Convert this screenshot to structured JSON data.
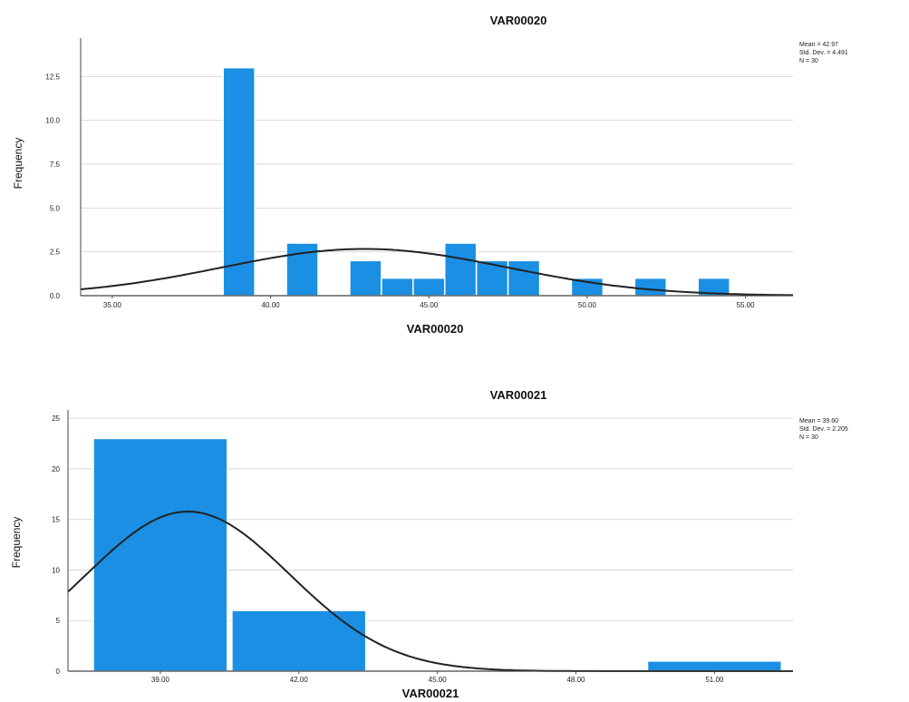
{
  "chart_data": [
    {
      "type": "histogram",
      "title": "VAR00020",
      "xlabel": "VAR00020",
      "ylabel": "Frequency",
      "xlim": [
        34.0,
        56.5
      ],
      "ylim": [
        0,
        15
      ],
      "x_ticks": [
        35,
        40,
        45,
        50,
        55
      ],
      "x_tick_labels": [
        "35.00",
        "40.00",
        "45.00",
        "50.00",
        "55.00"
      ],
      "y_ticks": [
        0,
        2.5,
        5,
        7.5,
        10,
        12.5
      ],
      "y_tick_labels": [
        "0.0",
        "2.5",
        "5.0",
        "7.5",
        "10.0",
        "12.5"
      ],
      "bin_width": 1,
      "bins": [
        {
          "x": 39,
          "count": 13
        },
        {
          "x": 41,
          "count": 3
        },
        {
          "x": 43,
          "count": 2
        },
        {
          "x": 44,
          "count": 1
        },
        {
          "x": 45,
          "count": 1
        },
        {
          "x": 46,
          "count": 3
        },
        {
          "x": 47,
          "count": 2
        },
        {
          "x": 48,
          "count": 2
        },
        {
          "x": 50,
          "count": 1
        },
        {
          "x": 52,
          "count": 1
        },
        {
          "x": 54,
          "count": 1
        }
      ],
      "normal_curve": {
        "mean": 42.97,
        "sd": 4.491,
        "n": 30
      },
      "stats": [
        "Mean = 42.97",
        "Std. Dev. = 4.491",
        "N = 30"
      ],
      "bar_color": "#1a8fe3",
      "curve_color": "#222222",
      "grid": true
    },
    {
      "type": "histogram",
      "title": "VAR00021",
      "xlabel": "VAR00021",
      "ylabel": "Frequency",
      "xlim": [
        37.0,
        52.7
      ],
      "ylim": [
        0,
        26
      ],
      "x_ticks": [
        39,
        42,
        45,
        48,
        51
      ],
      "x_tick_labels": [
        "39.00",
        "42.00",
        "45.00",
        "48.00",
        "51.00"
      ],
      "y_ticks": [
        0,
        5,
        10,
        15,
        20,
        25
      ],
      "y_tick_labels": [
        "0",
        "5",
        "10",
        "15",
        "20",
        "25"
      ],
      "bin_width": 2.9,
      "bins": [
        {
          "x": 39,
          "count": 23
        },
        {
          "x": 42,
          "count": 6
        },
        {
          "x": 51,
          "count": 1
        }
      ],
      "normal_curve": {
        "mean": 39.6,
        "sd": 2.2,
        "n": 30
      },
      "stats": [
        "Mean = 39.60",
        "Std. Dev. = 2.205",
        "N = 30"
      ],
      "bar_color": "#1a8fe3",
      "curve_color": "#222222",
      "grid": true
    }
  ]
}
